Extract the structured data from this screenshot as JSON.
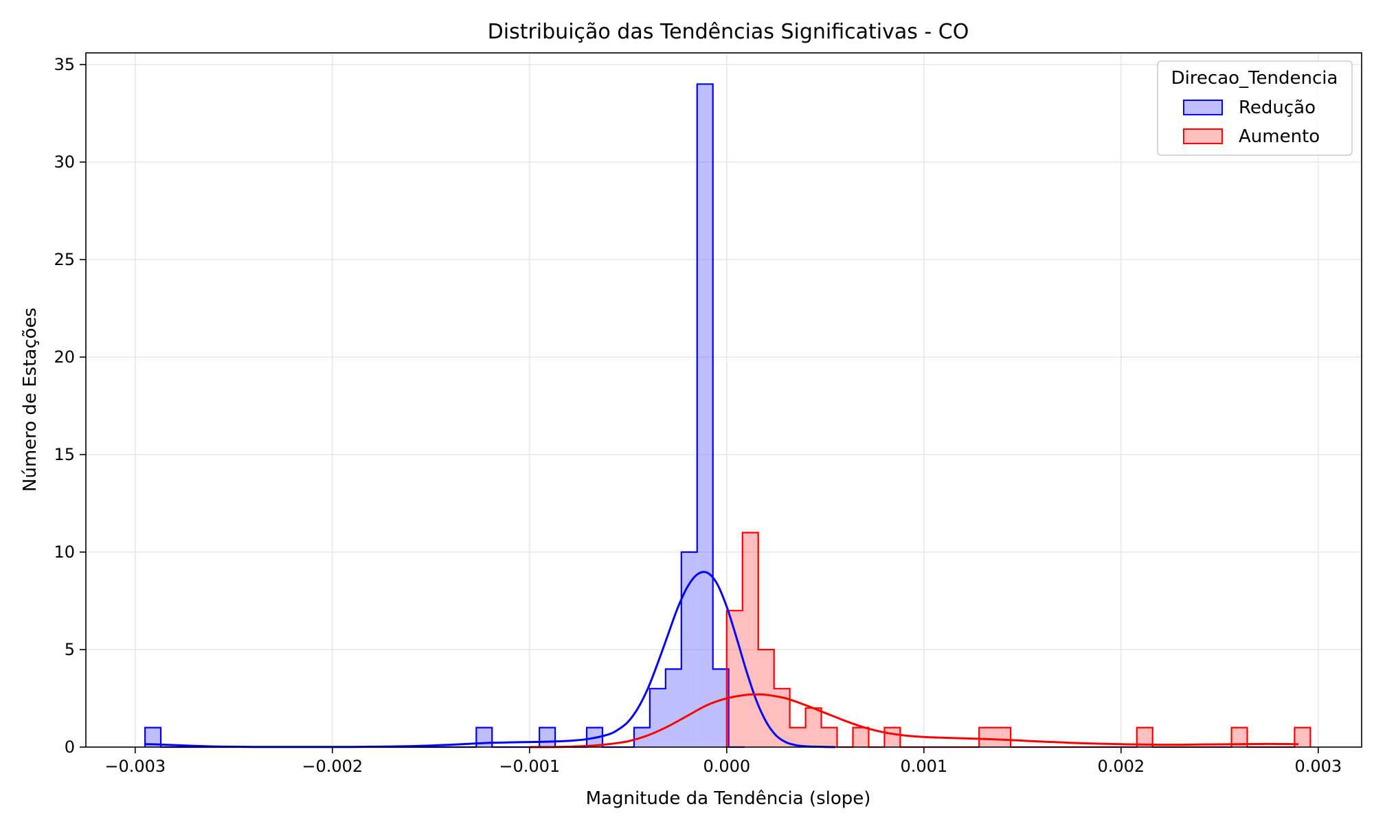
{
  "chart_data": {
    "type": "histogram",
    "title": "Distribuição das Tendências Significativas - CO",
    "xlabel": "Magnitude da Tendência (slope)",
    "ylabel": "Número de Estações",
    "xlim": [
      -0.00325,
      0.00322
    ],
    "ylim": [
      0,
      35.6
    ],
    "xticks": [
      -0.003,
      -0.002,
      -0.001,
      0.0,
      0.001,
      0.002,
      0.003
    ],
    "xtick_labels": [
      "−0.003",
      "−0.002",
      "−0.001",
      "0.000",
      "0.001",
      "0.002",
      "0.003"
    ],
    "yticks": [
      0,
      5,
      10,
      15,
      20,
      25,
      30,
      35
    ],
    "ytick_labels": [
      "0",
      "5",
      "10",
      "15",
      "20",
      "25",
      "30",
      "35"
    ],
    "grid": true,
    "legend": {
      "title": "Direcao_Tendencia",
      "placement": "top-right"
    },
    "series": [
      {
        "name": "Redução",
        "color": "#0000ff",
        "fill": "#c0c0ff",
        "bin_edges": [
          -0.00295,
          -0.00287,
          -0.00279,
          -0.00271,
          -0.00263,
          -0.00255,
          -0.00247,
          -0.00239,
          -0.00231,
          -0.00223,
          -0.00215,
          -0.00207,
          -0.00199,
          -0.00191,
          -0.00183,
          -0.00175,
          -0.00167,
          -0.00159,
          -0.00151,
          -0.00143,
          -0.00135,
          -0.00127,
          -0.00119,
          -0.00111,
          -0.00103,
          -0.00095,
          -0.00087,
          -0.00079,
          -0.00071,
          -0.00063,
          -0.00055,
          -0.00047,
          -0.00039,
          -0.00031,
          -0.00023,
          -0.00015,
          -7e-05,
          1e-05,
          9e-05
        ],
        "counts": [
          1,
          0,
          0,
          0,
          0,
          0,
          0,
          0,
          0,
          0,
          0,
          0,
          0,
          0,
          0,
          0,
          0,
          0,
          0,
          0,
          0,
          1,
          0,
          0,
          0,
          1,
          0,
          0,
          1,
          0,
          0,
          1,
          3,
          4,
          10,
          34,
          4,
          0
        ],
        "kde": {
          "x": [
            -0.00295,
            -0.0029,
            -0.0028,
            -0.0027,
            -0.0026,
            -0.0025,
            -0.0024,
            -0.0023,
            -0.0022,
            -0.0021,
            -0.002,
            -0.0019,
            -0.0018,
            -0.0017,
            -0.0016,
            -0.0015,
            -0.0014,
            -0.0013,
            -0.0012,
            -0.0011,
            -0.001,
            -0.0009,
            -0.0008,
            -0.0007,
            -0.0006,
            -0.00055,
            -0.0005,
            -0.00045,
            -0.0004,
            -0.00035,
            -0.0003,
            -0.00025,
            -0.0002,
            -0.00015,
            -0.0001,
            -5e-05,
            0.0,
            5e-05,
            0.0001,
            0.00015,
            0.0002,
            0.00025,
            0.0003,
            0.00035,
            0.0004,
            0.00045,
            0.0005,
            0.00055
          ],
          "y": [
            0.15,
            0.14,
            0.1,
            0.06,
            0.03,
            0.02,
            0.01,
            0.01,
            0.01,
            0.01,
            0.01,
            0.01,
            0.02,
            0.03,
            0.05,
            0.08,
            0.12,
            0.17,
            0.22,
            0.24,
            0.26,
            0.28,
            0.32,
            0.42,
            0.65,
            0.9,
            1.3,
            2.0,
            3.0,
            4.3,
            5.7,
            7.1,
            8.2,
            8.85,
            8.95,
            8.4,
            7.2,
            5.6,
            3.9,
            2.4,
            1.3,
            0.6,
            0.25,
            0.1,
            0.04,
            0.02,
            0.01,
            0.0
          ]
        }
      },
      {
        "name": "Aumento",
        "color": "#ff0000",
        "fill": "#ffc0c0",
        "bin_edges": [
          0.0,
          8e-05,
          0.00016,
          0.00024,
          0.00032,
          0.0004,
          0.00048,
          0.00056,
          0.00064,
          0.00072,
          0.0008,
          0.00088,
          0.00096,
          0.00104,
          0.00112,
          0.0012,
          0.00128,
          0.00136,
          0.00144,
          0.00152,
          0.0016,
          0.00168,
          0.00176,
          0.00184,
          0.00192,
          0.002,
          0.00208,
          0.00216,
          0.00224,
          0.00232,
          0.0024,
          0.00248,
          0.00256,
          0.00264,
          0.00272,
          0.0028,
          0.00288,
          0.00296
        ],
        "counts": [
          7,
          11,
          5,
          3,
          1,
          2,
          1,
          0,
          1,
          0,
          1,
          0,
          0,
          0,
          0,
          0,
          1,
          1,
          0,
          0,
          0,
          0,
          0,
          0,
          0,
          0,
          1,
          0,
          0,
          0,
          0,
          0,
          1,
          0,
          0,
          0,
          1
        ],
        "kde": {
          "x": [
            -0.001,
            -0.0009,
            -0.0008,
            -0.0007,
            -0.0006,
            -0.0005,
            -0.0004,
            -0.0003,
            -0.0002,
            -0.0001,
            0.0,
            0.0001,
            0.00015,
            0.0002,
            0.0003,
            0.0004,
            0.0005,
            0.0006,
            0.0007,
            0.0008,
            0.0009,
            0.001,
            0.0011,
            0.0012,
            0.0013,
            0.0014,
            0.0015,
            0.0016,
            0.0017,
            0.0018,
            0.0019,
            0.002,
            0.0021,
            0.0022,
            0.0023,
            0.0024,
            0.0025,
            0.0026,
            0.0027,
            0.0028,
            0.0029
          ],
          "y": [
            0.0,
            0.0,
            0.02,
            0.06,
            0.15,
            0.3,
            0.6,
            1.05,
            1.6,
            2.15,
            2.5,
            2.68,
            2.7,
            2.68,
            2.5,
            2.15,
            1.75,
            1.35,
            1.0,
            0.75,
            0.6,
            0.52,
            0.48,
            0.45,
            0.42,
            0.38,
            0.33,
            0.28,
            0.24,
            0.2,
            0.17,
            0.15,
            0.13,
            0.12,
            0.12,
            0.13,
            0.14,
            0.15,
            0.16,
            0.16,
            0.15
          ]
        }
      }
    ]
  }
}
